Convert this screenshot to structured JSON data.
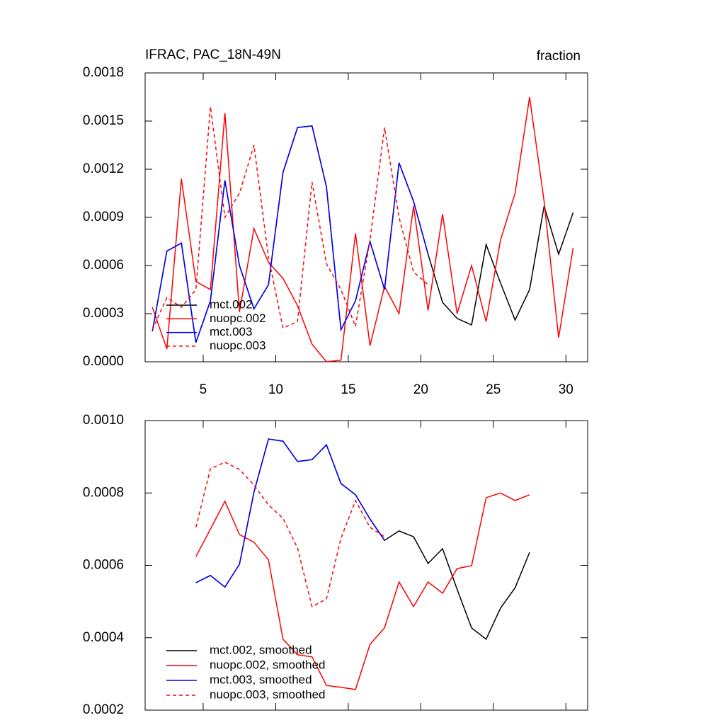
{
  "chart_data": [
    {
      "type": "line",
      "title": "IFRAC, PAC_18N-49N",
      "right_title": "fraction",
      "x": [
        1.5,
        2.5,
        3.5,
        4.5,
        5.5,
        6.5,
        7.5,
        8.5,
        9.5,
        10.5,
        11.5,
        12.5,
        13.5,
        14.5,
        15.5,
        16.5,
        17.5,
        18.5,
        19.5,
        20.5,
        21.5,
        22.5,
        23.5,
        24.5,
        25.5,
        26.5,
        27.5,
        28.5,
        29.5,
        30.5
      ],
      "xlim": [
        1,
        31.5
      ],
      "xticks": [
        5,
        10,
        15,
        20,
        25,
        30
      ],
      "ylim": [
        0,
        0.0018
      ],
      "yticks": [
        {
          "value": 0,
          "label": "0.0000"
        },
        0.0003,
        0.0006,
        0.0009,
        0.0012,
        0.0015,
        0.0018
      ],
      "series": [
        {
          "name": "mct.002",
          "color": "#000000",
          "dashed": false,
          "values": [
            0.00019,
            0.00069,
            0.00074,
            0.00012,
            0.00038,
            0.00113,
            0.0006,
            0.00033,
            0.00048,
            0.00118,
            0.00146,
            0.00147,
            0.00109,
            0.0002,
            0.00038,
            0.00075,
            0.00045,
            0.00124,
            0.001,
            0.00067,
            0.00037,
            0.00027,
            0.00023,
            0.00073,
            0.00049,
            0.00026,
            0.00045,
            0.00097,
            0.00067,
            0.00093
          ]
        },
        {
          "name": "nuopc.002",
          "color": "#ff0000",
          "dashed": false,
          "values": [
            0.00034,
            8e-05,
            0.00114,
            0.0005,
            0.00045,
            0.00155,
            0.00031,
            0.00083,
            0.00062,
            0.00052,
            0.00035,
            0.00011,
            0.0,
            1e-05,
            0.0008,
            0.0001,
            0.00047,
            0.0003,
            0.00097,
            0.00032,
            0.00092,
            0.0003,
            0.0006,
            0.00025,
            0.00076,
            0.00105,
            0.00165,
            0.001,
            0.00015,
            0.00071
          ]
        },
        {
          "name": "mct.003",
          "color": "#0000ff",
          "dashed": false,
          "values": [
            0.00019,
            0.00069,
            0.00074,
            0.00012,
            0.00038,
            0.00113,
            0.0006,
            0.00033,
            0.00048,
            0.00118,
            0.00146,
            0.00147,
            0.00109,
            0.0002,
            0.00038,
            0.00075,
            0.00045,
            0.00124,
            0.001,
            0.00067,
            null,
            null,
            null,
            null,
            null,
            null,
            null,
            null,
            null,
            null
          ]
        },
        {
          "name": "nuopc.003",
          "color": "#ff0000",
          "dashed": true,
          "values": [
            0.0002,
            0.0004,
            0.00034,
            0.00045,
            0.00159,
            0.0009,
            0.00105,
            0.00135,
            0.00065,
            0.00021,
            0.00025,
            0.00112,
            0.00061,
            0.00045,
            0.00022,
            0.00076,
            0.00146,
            0.0009,
            0.00056,
            0.00048,
            null,
            null,
            null,
            null,
            null,
            null,
            null,
            null,
            null,
            null
          ]
        }
      ]
    },
    {
      "type": "line",
      "x": [
        4.5,
        5.5,
        6.5,
        7.5,
        8.5,
        9.5,
        10.5,
        11.5,
        12.5,
        13.5,
        14.5,
        15.5,
        16.5,
        17.5,
        18.5,
        19.5,
        20.5,
        21.5,
        22.5,
        23.5,
        24.5,
        25.5,
        26.5,
        27.5
      ],
      "xlim": [
        1,
        31.5
      ],
      "xticks": [
        5,
        10,
        15,
        20,
        25,
        30
      ],
      "xtick_labels": false,
      "ylim": [
        0.0002,
        0.001
      ],
      "yticks": [
        0.0002,
        0.0004,
        0.0006,
        0.0008,
        {
          "value": 0.001,
          "label": "0.0010"
        }
      ],
      "series": [
        {
          "name": "mct.002, smoothed",
          "color": "#000000",
          "dashed": false,
          "values": [
            0.000552,
            0.000572,
            0.00054,
            0.000603,
            0.000802,
            0.000949,
            0.000943,
            0.000887,
            0.000892,
            0.000933,
            0.000826,
            0.000795,
            0.000728,
            0.000669,
            0.000695,
            0.000679,
            0.000605,
            0.000646,
            0.000534,
            0.000427,
            0.000396,
            0.000482,
            0.000538,
            0.000636
          ]
        },
        {
          "name": "nuopc.002, smoothed",
          "color": "#ff0000",
          "dashed": false,
          "values": [
            0.000624,
            0.0007,
            0.000777,
            0.000685,
            0.000664,
            0.000615,
            0.000396,
            0.000353,
            0.000347,
            0.000268,
            0.000263,
            0.000257,
            0.000382,
            0.000427,
            0.000554,
            0.000486,
            0.000554,
            0.000523,
            0.000591,
            0.000599,
            0.000787,
            0.0008,
            0.000779,
            0.000795
          ]
        },
        {
          "name": "mct.003, smoothed",
          "color": "#0000ff",
          "dashed": false,
          "values": [
            0.000552,
            0.000572,
            0.00054,
            0.000603,
            0.000802,
            0.000949,
            0.000943,
            0.000887,
            0.000892,
            0.000933,
            0.000826,
            0.000795,
            0.000728,
            0.000669,
            null,
            null,
            null,
            null,
            null,
            null,
            null,
            null,
            null,
            null
          ]
        },
        {
          "name": "nuopc.003, smoothed",
          "color": "#ff0000",
          "dashed": true,
          "values": [
            0.000705,
            0.000867,
            0.000885,
            0.000865,
            0.000822,
            0.000767,
            0.00073,
            0.000648,
            0.000486,
            0.000507,
            0.000675,
            0.000779,
            0.000705,
            0.000679,
            null,
            null,
            null,
            null,
            null,
            null,
            null,
            null,
            null,
            null
          ]
        }
      ]
    }
  ]
}
